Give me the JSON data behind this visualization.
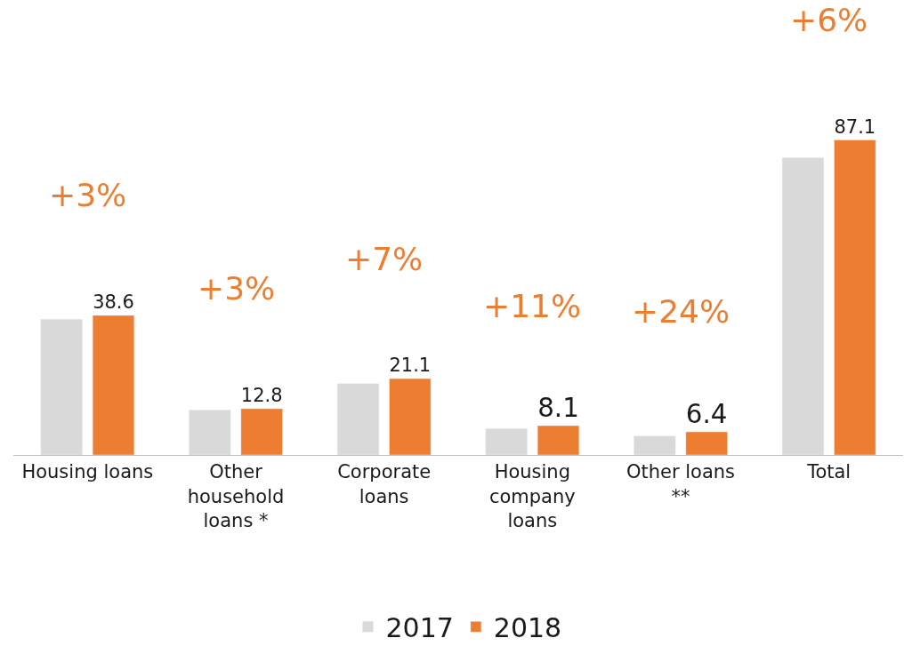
{
  "chart_data": {
    "type": "bar",
    "categories": [
      "Housing loans",
      "Other\nhousehold\nloans *",
      "Corporate\nloans",
      "Housing\ncompany\nloans",
      "Other loans\n**",
      "Total"
    ],
    "series": [
      {
        "name": "2017",
        "color": "#d9d9d9",
        "values": [
          37.5,
          12.4,
          19.7,
          7.3,
          5.2,
          82.2
        ],
        "value_labels": [
          null,
          null,
          null,
          null,
          null,
          null
        ]
      },
      {
        "name": "2018",
        "color": "#ed7d31",
        "values": [
          38.6,
          12.8,
          21.1,
          8.1,
          6.4,
          87.1
        ],
        "value_labels": [
          "38.6",
          "12.8",
          "21.1",
          "8.1",
          "6.4",
          "87.1"
        ]
      }
    ],
    "annotations": [
      "+3%",
      "+3%",
      "+7%",
      "+11%",
      "+24%",
      "+6%"
    ],
    "legend": "bottom"
  }
}
